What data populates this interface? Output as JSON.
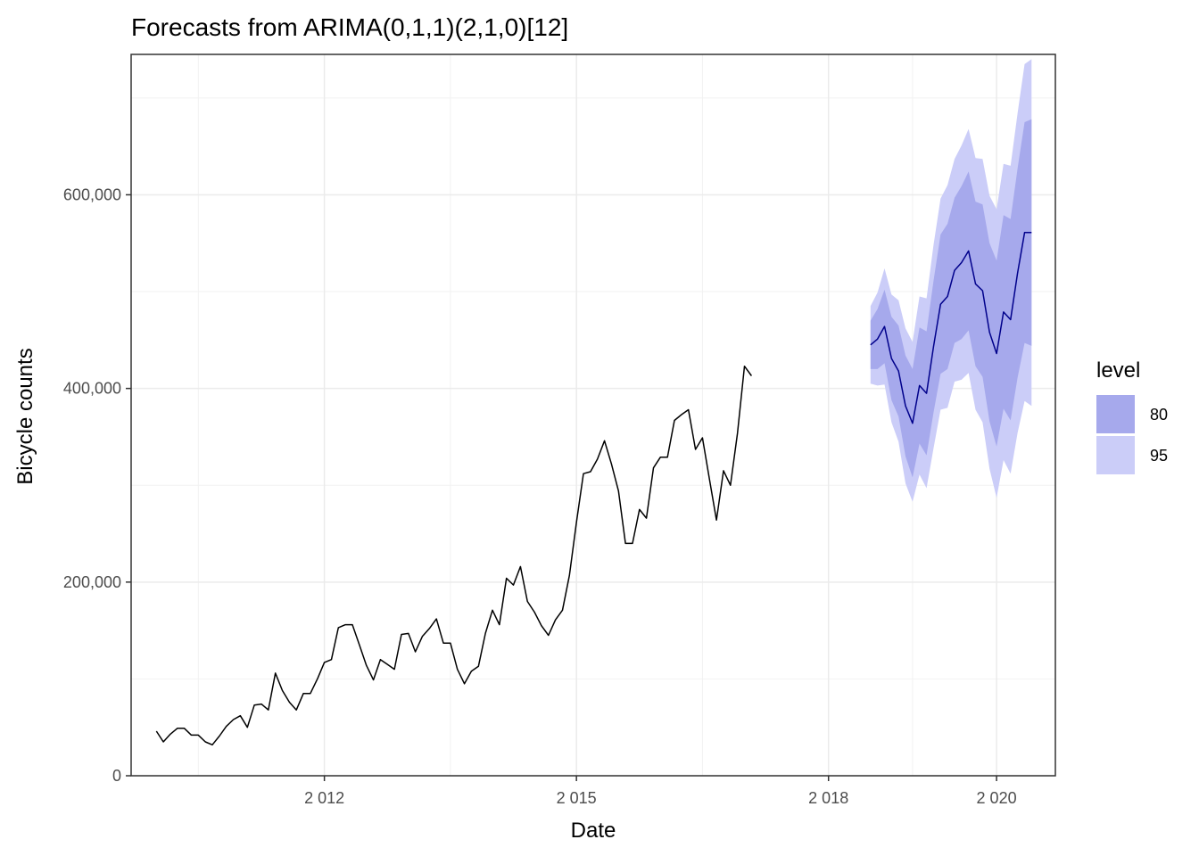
{
  "chart_data": {
    "type": "line",
    "title": "Forecasts from ARIMA(0,1,1)(2,1,0)[12]",
    "xlabel": "Date",
    "ylabel": "Bicycle counts",
    "xlim": [
      2009.7,
      2020.7
    ],
    "ylim": [
      0,
      745000
    ],
    "x_ticks": [
      {
        "value": 2012,
        "label": "2 012"
      },
      {
        "value": 2015,
        "label": "2 015"
      },
      {
        "value": 2018,
        "label": "2 018"
      },
      {
        "value": 2020,
        "label": "2 020"
      }
    ],
    "x_minor_ticks": [
      2010.5,
      2013.5,
      2016.5,
      2019.0
    ],
    "y_ticks": [
      {
        "value": 0,
        "label": "0"
      },
      {
        "value": 200000,
        "label": "200,000"
      },
      {
        "value": 400000,
        "label": "400,000"
      },
      {
        "value": 600000,
        "label": "600,000"
      }
    ],
    "y_minor_ticks": [
      100000,
      300000,
      500000,
      700000
    ],
    "grid": true,
    "legend_position": "right",
    "legend": {
      "title": "level",
      "items": [
        {
          "label": "80",
          "color": "#a6a9ec"
        },
        {
          "label": "95",
          "color": "#cbcdf8"
        }
      ]
    },
    "colors": {
      "observed": "#000000",
      "forecast": "#00008b",
      "band80": "#a6a9ec",
      "band95": "#cbcdf8"
    },
    "observed": {
      "start": 2010.0,
      "step": 0.0833333,
      "values": [
        46000,
        35000,
        43000,
        49000,
        49000,
        42000,
        42000,
        35000,
        32000,
        41000,
        51000,
        58000,
        62000,
        50000,
        73000,
        74000,
        68000,
        106000,
        88000,
        76000,
        68000,
        85000,
        85000,
        100000,
        117000,
        120000,
        153000,
        156000,
        156000,
        135000,
        114000,
        99000,
        120000,
        115000,
        110000,
        146000,
        147000,
        128000,
        144000,
        152000,
        162000,
        137000,
        137000,
        110000,
        95000,
        108000,
        113000,
        147000,
        171000,
        156000,
        204000,
        197000,
        216000,
        180000,
        169000,
        155000,
        145000,
        161000,
        171000,
        207000,
        262000,
        312000,
        314000,
        327000,
        346000,
        322000,
        294000,
        240000,
        240000,
        275000,
        266000,
        318000,
        329000,
        329000,
        367000,
        373000,
        378000,
        337000,
        349000,
        306000,
        264000,
        315000,
        300000,
        354000,
        423000,
        413000
      ]
    },
    "forecast": {
      "start": 2018.5,
      "step": 0.0833333,
      "mean": [
        445000,
        451000,
        464000,
        431000,
        418000,
        382000,
        364000,
        403000,
        395000,
        443000,
        487000,
        495000,
        522000,
        530000,
        542000,
        508000,
        501000,
        458000,
        436000,
        479000,
        471000,
        519000,
        561000,
        561000
      ],
      "lo80": [
        420000,
        420000,
        426000,
        388000,
        371000,
        330000,
        308000,
        343000,
        331000,
        375000,
        415000,
        420000,
        447000,
        451000,
        460000,
        423000,
        412000,
        366000,
        340000,
        379000,
        367000,
        411000,
        447000,
        444000
      ],
      "hi80": [
        470000,
        482000,
        502000,
        474000,
        465000,
        434000,
        420000,
        463000,
        459000,
        511000,
        559000,
        570000,
        597000,
        609000,
        624000,
        593000,
        590000,
        550000,
        532000,
        579000,
        575000,
        627000,
        675000,
        678000
      ],
      "lo95": [
        405000,
        403000,
        404000,
        365000,
        345000,
        302000,
        283000,
        311000,
        297000,
        338000,
        378000,
        380000,
        407000,
        409000,
        416000,
        378000,
        365000,
        317000,
        287000,
        326000,
        312000,
        354000,
        387000,
        382000
      ],
      "hi95": [
        485000,
        499000,
        524000,
        497000,
        491000,
        462000,
        448000,
        495000,
        493000,
        548000,
        596000,
        610000,
        637000,
        651000,
        668000,
        638000,
        637000,
        599000,
        585000,
        632000,
        630000,
        684000,
        735000,
        740000
      ]
    }
  }
}
